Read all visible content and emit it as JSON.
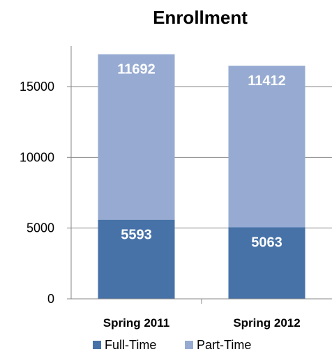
{
  "chart_data": {
    "type": "bar",
    "stacked": true,
    "title": "Enrollment",
    "xlabel": "",
    "ylabel": "",
    "categories": [
      "Spring 2011",
      "Spring 2012"
    ],
    "series": [
      {
        "name": "Full-Time",
        "values": [
          5593,
          5063
        ],
        "color": "#4672A8"
      },
      {
        "name": "Part-Time",
        "values": [
          11692,
          11412
        ],
        "color": "#97ABD2"
      }
    ],
    "ylim": [
      0,
      17500
    ],
    "yticks": [
      0,
      5000,
      10000,
      15000
    ],
    "ytick_labels": [
      "0",
      "5000",
      "10000",
      "15000"
    ],
    "grid": true,
    "legend_position": "bottom",
    "data_labels": true
  }
}
